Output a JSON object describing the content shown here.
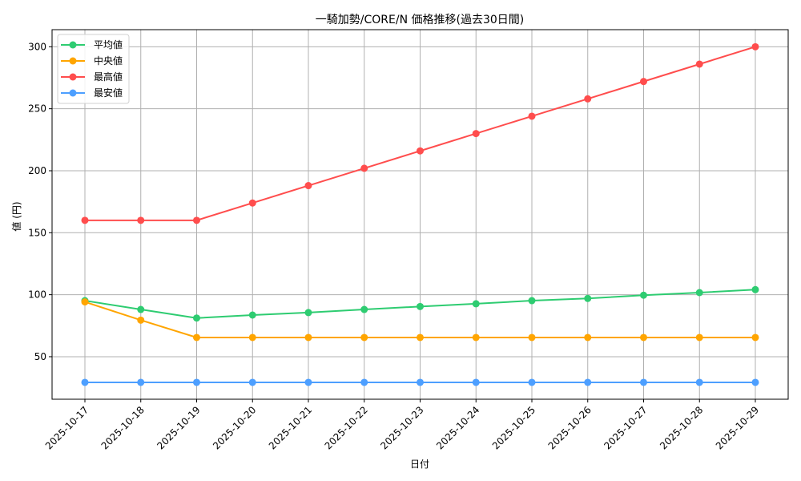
{
  "chart_data": {
    "type": "line",
    "title": "一騎加勢/CORE/N 価格推移(過去30日間)",
    "xlabel": "日付",
    "ylabel": "値 (円)",
    "categories": [
      "2025-10-17",
      "2025-10-18",
      "2025-10-19",
      "2025-10-20",
      "2025-10-21",
      "2025-10-22",
      "2025-10-23",
      "2025-10-24",
      "2025-10-25",
      "2025-10-26",
      "2025-10-27",
      "2025-10-28",
      "2025-10-29"
    ],
    "series": [
      {
        "name": "平均値",
        "color": "#2ecc71",
        "values": [
          95.2,
          88.1,
          81.2,
          83.6,
          85.6,
          88.1,
          90.5,
          92.7,
          95.2,
          97.0,
          99.6,
          101.7,
          104.1
        ]
      },
      {
        "name": "中央値",
        "color": "#ffa500",
        "values": [
          94.2,
          79.5,
          65.5,
          65.5,
          65.5,
          65.5,
          65.5,
          65.5,
          65.5,
          65.5,
          65.5,
          65.5,
          65.5
        ]
      },
      {
        "name": "最高値",
        "color": "#ff4d4d",
        "values": [
          160,
          160,
          160,
          174,
          188,
          202,
          216,
          230,
          244,
          258,
          272,
          286,
          300
        ]
      },
      {
        "name": "最安値",
        "color": "#4d9fff",
        "values": [
          29.3,
          29.3,
          29.3,
          29.3,
          29.3,
          29.3,
          29.3,
          29.3,
          29.3,
          29.3,
          29.3,
          29.3,
          29.3
        ]
      }
    ],
    "yticks": [
      50,
      100,
      150,
      200,
      250,
      300
    ],
    "ylim": [
      15.7,
      313.8
    ],
    "grid": true,
    "legend_position": "upper left",
    "xtick_rotation": 45
  }
}
